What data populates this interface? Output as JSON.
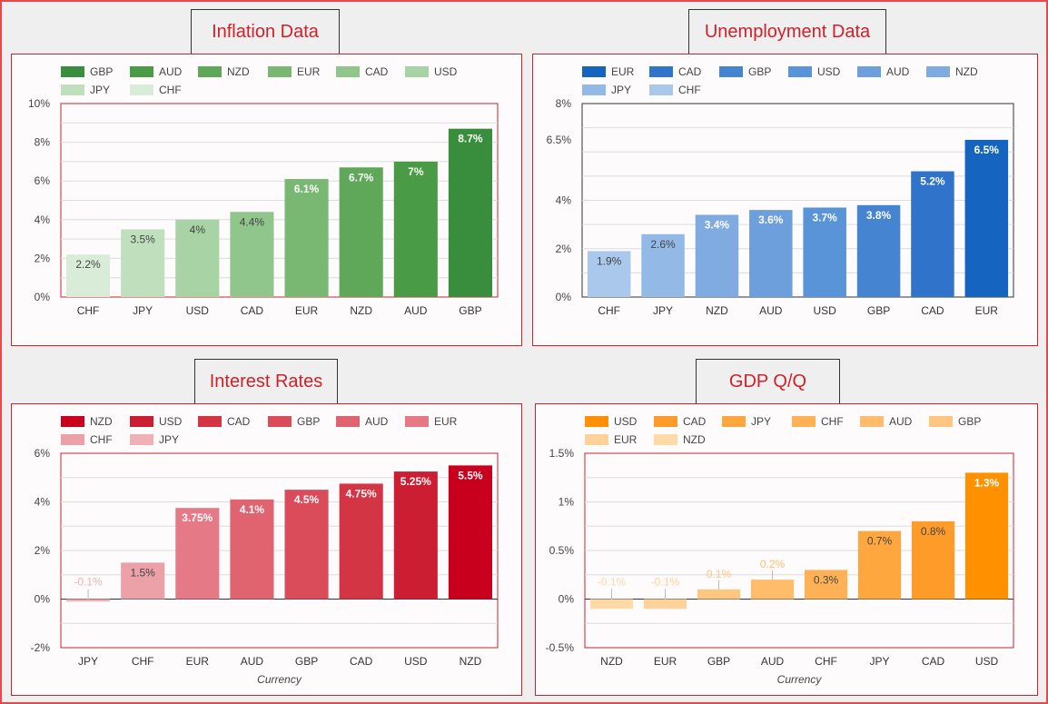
{
  "chart_data": [
    {
      "type": "bar",
      "title": "Inflation Data",
      "categories": [
        "CHF",
        "JPY",
        "USD",
        "CAD",
        "EUR",
        "NZD",
        "AUD",
        "GBP"
      ],
      "values": [
        2.2,
        3.5,
        4,
        4.4,
        6.1,
        6.7,
        7,
        8.7
      ],
      "labels": [
        "2.2%",
        "3.5%",
        "4%",
        "4.4%",
        "6.1%",
        "6.7%",
        "7%",
        "8.7%"
      ],
      "colors": [
        "#d9ecd7",
        "#c0dfbd",
        "#a8d3a4",
        "#90c58b",
        "#78b872",
        "#5fa85a",
        "#4a9b45",
        "#388e3c"
      ],
      "legend": [
        "GBP",
        "AUD",
        "NZD",
        "EUR",
        "CAD",
        "USD",
        "JPY",
        "CHF"
      ],
      "legend_position": "top",
      "yticks": [
        "0%",
        "2%",
        "4%",
        "6%",
        "8%",
        "10%"
      ],
      "ylim": [
        0,
        10
      ],
      "xlabel": "",
      "plot_border": "#c8262c",
      "grid": true
    },
    {
      "type": "bar",
      "title": "Unemployment Data",
      "categories": [
        "CHF",
        "JPY",
        "NZD",
        "AUD",
        "USD",
        "GBP",
        "CAD",
        "EUR"
      ],
      "values": [
        1.9,
        2.6,
        3.4,
        3.6,
        3.7,
        3.8,
        5.2,
        6.5
      ],
      "labels": [
        "1.9%",
        "2.6%",
        "3.4%",
        "3.6%",
        "3.7%",
        "3.8%",
        "5.2%",
        "6.5%"
      ],
      "colors": [
        "#aac8ec",
        "#93b9e6",
        "#7fabe0",
        "#6c9fdc",
        "#5993d8",
        "#4484d1",
        "#2f74ca",
        "#1565c0"
      ],
      "legend": [
        "EUR",
        "CAD",
        "GBP",
        "USD",
        "AUD",
        "NZD",
        "JPY",
        "CHF"
      ],
      "legend_position": "top",
      "yticks": [
        "0%",
        "2%",
        "4%",
        "6.5%",
        "8%"
      ],
      "ylim": [
        0,
        8
      ],
      "xlabel": "",
      "plot_border": "#333333",
      "grid": true
    },
    {
      "type": "bar",
      "title": "Interest Rates",
      "categories": [
        "JPY",
        "CHF",
        "EUR",
        "AUD",
        "GBP",
        "CAD",
        "USD",
        "NZD"
      ],
      "values": [
        -0.1,
        1.5,
        3.75,
        4.1,
        4.5,
        4.75,
        5.25,
        5.5
      ],
      "labels": [
        "-0.1%",
        "1.5%",
        "3.75%",
        "4.1%",
        "4.5%",
        "4.75%",
        "5.25%",
        "5.5%"
      ],
      "colors": [
        "#f0b0b6",
        "#eca0a8",
        "#e57a86",
        "#e06370",
        "#da4c5a",
        "#d43545",
        "#cc1e32",
        "#c8001e"
      ],
      "legend": [
        "NZD",
        "USD",
        "CAD",
        "GBP",
        "AUD",
        "EUR",
        "CHF",
        "JPY"
      ],
      "legend_position": "top",
      "yticks": [
        "-2%",
        "0%",
        "2%",
        "4%",
        "6%"
      ],
      "ylim": [
        -2,
        6
      ],
      "xlabel": "Currency",
      "plot_border": "#c8262c",
      "grid": true
    },
    {
      "type": "bar",
      "title": "GDP Q/Q",
      "categories": [
        "NZD",
        "EUR",
        "GBP",
        "AUD",
        "CHF",
        "JPY",
        "CAD",
        "USD"
      ],
      "values": [
        -0.1,
        -0.1,
        0.1,
        0.2,
        0.3,
        0.7,
        0.8,
        1.3
      ],
      "labels": [
        "-0.1%",
        "-0.1%",
        "0.1%",
        "0.2%",
        "0.3%",
        "0.7%",
        "0.8%",
        "1.3%"
      ],
      "colors": [
        "#ffd9a6",
        "#ffd29a",
        "#ffc680",
        "#ffbd6b",
        "#ffb255",
        "#ffa73f",
        "#ff9c29",
        "#ff9100"
      ],
      "legend": [
        "USD",
        "CAD",
        "JPY",
        "CHF",
        "AUD",
        "GBP",
        "EUR",
        "NZD"
      ],
      "legend_position": "top",
      "yticks": [
        "-0.5%",
        "0%",
        "0.5%",
        "1%",
        "1.5%"
      ],
      "ylim": [
        -0.5,
        1.5
      ],
      "xlabel": "Currency",
      "plot_border": "#c8262c",
      "grid": true
    }
  ]
}
